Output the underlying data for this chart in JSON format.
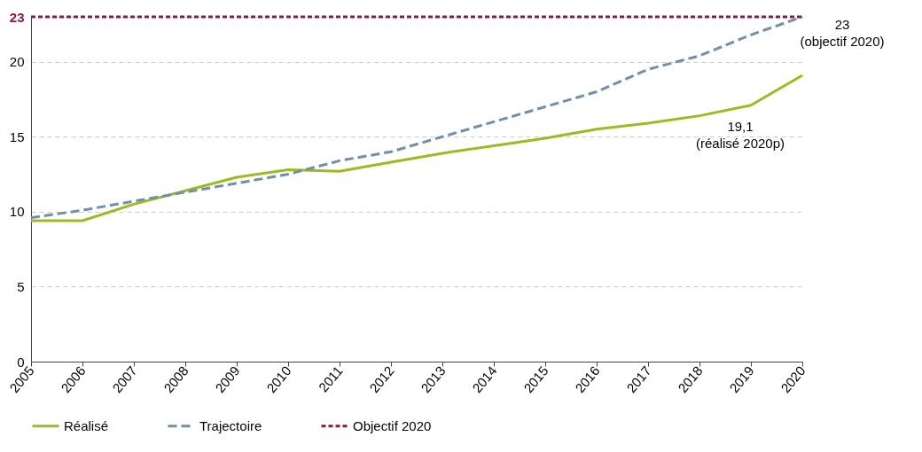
{
  "chart_data": {
    "type": "line",
    "categories": [
      "2005",
      "2006",
      "2007",
      "2008",
      "2009",
      "2010",
      "2011",
      "2012",
      "2013",
      "2014",
      "2015",
      "2016",
      "2017",
      "2018",
      "2019",
      "2020"
    ],
    "series": [
      {
        "name": "Réalisé",
        "color": "#9bbb1e",
        "line_style": "solid",
        "values": [
          9.4,
          9.4,
          10.5,
          11.4,
          12.3,
          12.8,
          12.7,
          13.3,
          13.9,
          14.4,
          14.9,
          15.5,
          15.9,
          16.4,
          17.1,
          19.1
        ]
      },
      {
        "name": "Trajectoire",
        "color": "#6f8fab",
        "line_style": "dashed",
        "values": [
          9.6,
          10.1,
          10.7,
          11.3,
          11.9,
          12.5,
          13.4,
          14.0,
          15.0,
          16.0,
          17.0,
          18.0,
          19.5,
          20.4,
          21.8,
          23
        ]
      },
      {
        "name": "Objectif 2020",
        "color": "#8b1a4a",
        "line_style": "dotted",
        "values": [
          23,
          23,
          23,
          23,
          23,
          23,
          23,
          23,
          23,
          23,
          23,
          23,
          23,
          23,
          23,
          23
        ]
      }
    ],
    "ylim": [
      0,
      23
    ],
    "yticks": [
      0,
      5,
      10,
      15,
      20,
      23
    ],
    "grid": "y",
    "legend": "bottom",
    "marker": "none",
    "annotations": [
      {
        "text": "23\n(objectif 2020)",
        "x": "2020",
        "y": 23
      },
      "19,1\n(réalisé 2020p)"
    ]
  }
}
